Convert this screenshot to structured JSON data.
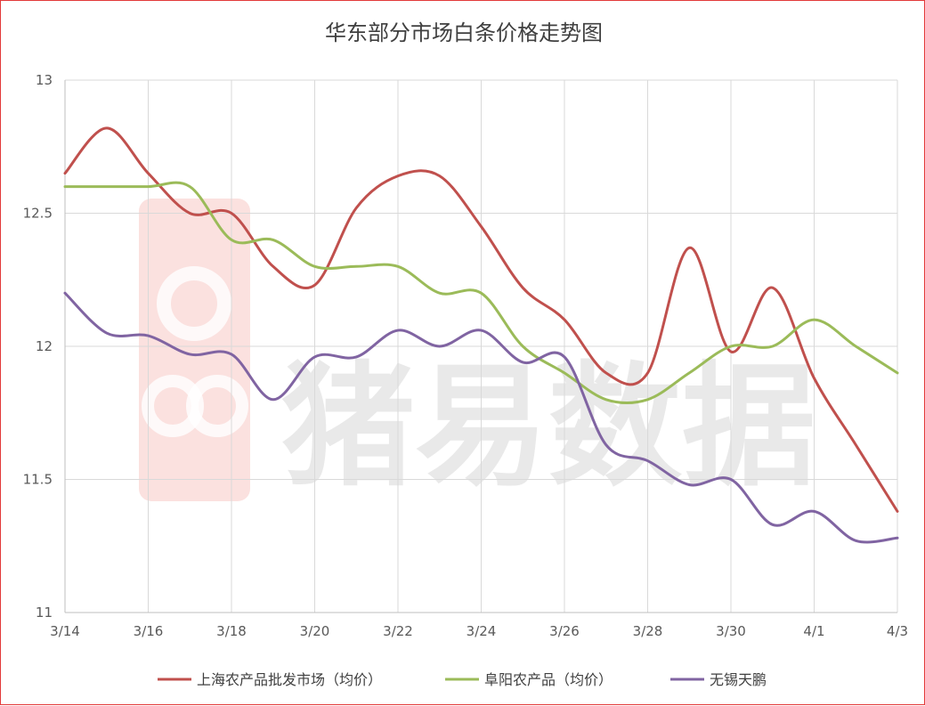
{
  "chart_data": {
    "type": "line",
    "title": "华东部分市场白条价格走势图",
    "x": [
      "3/14",
      "3/15",
      "3/16",
      "3/17",
      "3/18",
      "3/19",
      "3/20",
      "3/21",
      "3/22",
      "3/23",
      "3/24",
      "3/25",
      "3/26",
      "3/27",
      "3/28",
      "3/29",
      "3/30",
      "3/31",
      "4/1",
      "4/2",
      "4/3"
    ],
    "x_tick_labels": [
      "3/14",
      "3/16",
      "3/18",
      "3/20",
      "3/22",
      "3/24",
      "3/26",
      "3/28",
      "3/30",
      "4/1",
      "4/3"
    ],
    "ylim": [
      11,
      13
    ],
    "y_ticks": [
      11,
      11.5,
      12,
      12.5,
      13
    ],
    "grid": true,
    "legend_position": "bottom",
    "series": [
      {
        "name": "上海农产品批发市场（均价）",
        "color": "#c0504d",
        "values": [
          12.65,
          12.82,
          12.65,
          12.5,
          12.5,
          12.3,
          12.23,
          12.52,
          12.64,
          12.64,
          12.45,
          12.22,
          12.1,
          11.9,
          11.9,
          12.37,
          11.98,
          12.22,
          11.88,
          11.63,
          11.38
        ]
      },
      {
        "name": "阜阳农产品（均价）",
        "color": "#9bbb59",
        "values": [
          12.6,
          12.6,
          12.6,
          12.6,
          12.4,
          12.4,
          12.3,
          12.3,
          12.3,
          12.2,
          12.2,
          12.0,
          11.9,
          11.8,
          11.8,
          11.9,
          12.0,
          12.0,
          12.1,
          12.0,
          11.9
        ]
      },
      {
        "name": "无锡天鹏",
        "color": "#8064a2",
        "values": [
          12.2,
          12.05,
          12.04,
          11.97,
          11.97,
          11.8,
          11.96,
          11.96,
          12.06,
          12.0,
          12.06,
          11.94,
          11.96,
          11.63,
          11.57,
          11.48,
          11.5,
          11.33,
          11.38,
          11.27,
          11.28
        ]
      }
    ]
  },
  "watermark": {
    "text": "猪易数据",
    "logo_label": "猪易"
  }
}
